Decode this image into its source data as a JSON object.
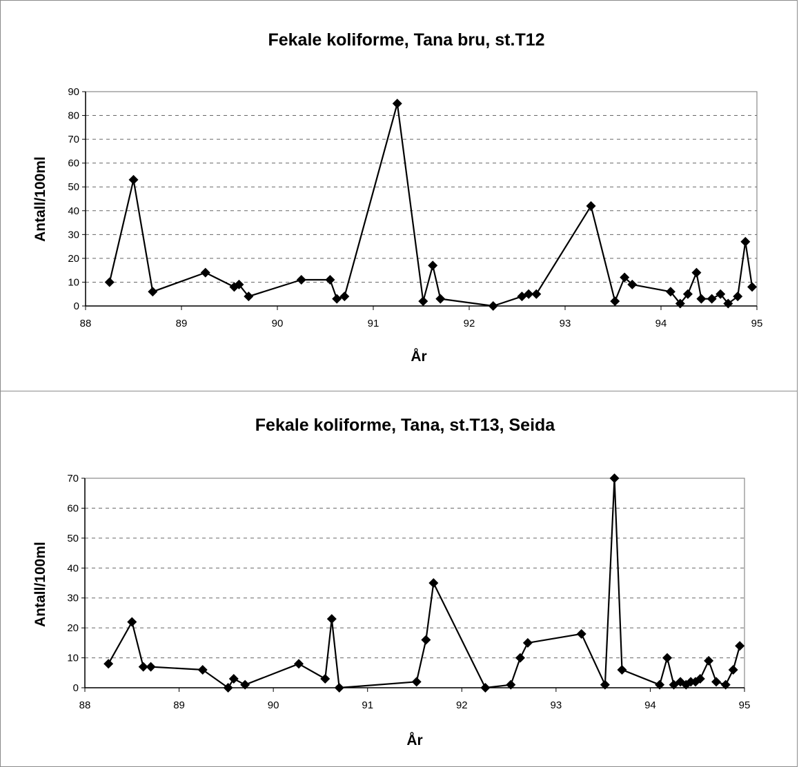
{
  "chart_data": [
    {
      "type": "line",
      "title": "Fekale koliforme, Tana bru, st.T12",
      "xlabel": "År",
      "ylabel": "Antall/100ml",
      "xlim": [
        88,
        95
      ],
      "ylim": [
        0,
        90
      ],
      "xticks": [
        "88",
        "89",
        "90",
        "91",
        "92",
        "93",
        "94",
        "95"
      ],
      "yticks": [
        "0",
        "10",
        "20",
        "30",
        "40",
        "50",
        "60",
        "70",
        "80",
        "90"
      ],
      "grid": "horizontal dashed",
      "legend": "none",
      "marker": "diamond",
      "series": [
        {
          "x": [
            88.25,
            88.5,
            88.7,
            89.25,
            89.55,
            89.6,
            89.7,
            90.25,
            90.55,
            90.62,
            90.7,
            91.25,
            91.52,
            91.62,
            91.7,
            92.25,
            92.55,
            92.62,
            92.7,
            93.27,
            93.52,
            93.62,
            93.7,
            94.1,
            94.2,
            94.28,
            94.37,
            94.42,
            94.53,
            94.62,
            94.7,
            94.8,
            94.88,
            94.95
          ],
          "y": [
            10,
            53,
            6,
            14,
            8,
            9,
            4,
            11,
            11,
            3,
            4,
            85,
            2,
            17,
            3,
            0,
            4,
            5,
            5,
            42,
            2,
            12,
            9,
            6,
            1,
            5,
            14,
            3,
            3,
            5,
            1,
            4,
            27,
            8
          ]
        }
      ]
    },
    {
      "type": "line",
      "title": "Fekale koliforme, Tana, st.T13, Seida",
      "xlabel": "År",
      "ylabel": "Antall/100ml",
      "xlim": [
        88,
        95
      ],
      "ylim": [
        0,
        70
      ],
      "xticks": [
        "88",
        "89",
        "90",
        "91",
        "92",
        "93",
        "94",
        "95"
      ],
      "yticks": [
        "0",
        "10",
        "20",
        "30",
        "40",
        "50",
        "60",
        "70"
      ],
      "grid": "horizontal dashed",
      "legend": "none",
      "marker": "diamond",
      "series": [
        {
          "x": [
            88.25,
            88.5,
            88.62,
            88.7,
            89.25,
            89.52,
            89.58,
            89.7,
            90.27,
            90.55,
            90.62,
            90.7,
            91.52,
            91.62,
            91.7,
            92.25,
            92.52,
            92.62,
            92.7,
            93.27,
            93.52,
            93.62,
            93.7,
            94.1,
            94.18,
            94.25,
            94.32,
            94.38,
            94.43,
            94.48,
            94.53,
            94.62,
            94.7,
            94.8,
            94.88,
            94.95
          ],
          "y": [
            8,
            22,
            7,
            7,
            6,
            0,
            3,
            1,
            8,
            3,
            23,
            0,
            2,
            16,
            35,
            0,
            1,
            10,
            15,
            18,
            1,
            70,
            6,
            1,
            10,
            1,
            2,
            1,
            2,
            2,
            3,
            9,
            2,
            1,
            6,
            14
          ]
        }
      ]
    }
  ]
}
